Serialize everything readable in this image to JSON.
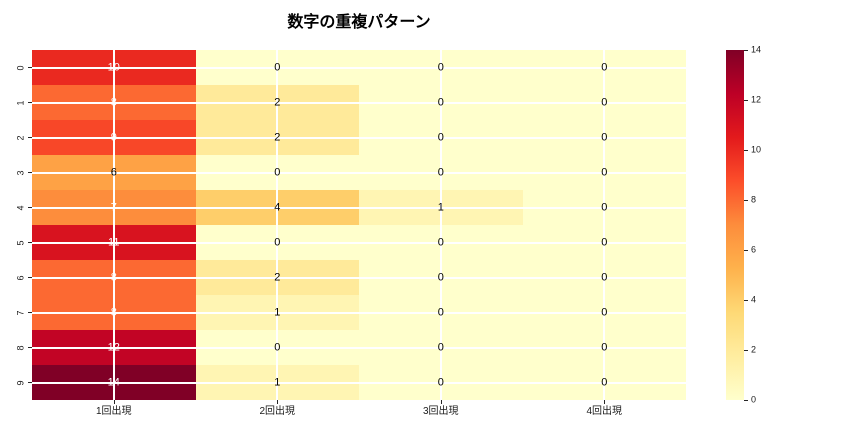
{
  "title": "数字の重複パターン",
  "chart_data": {
    "type": "heatmap",
    "rows": [
      "0",
      "1",
      "2",
      "3",
      "4",
      "5",
      "6",
      "7",
      "8",
      "9"
    ],
    "columns": [
      "1回出現",
      "2回出現",
      "3回出現",
      "4回出現"
    ],
    "values": [
      [
        10,
        0,
        0,
        0
      ],
      [
        8,
        2,
        0,
        0
      ],
      [
        9,
        2,
        0,
        0
      ],
      [
        6,
        0,
        0,
        0
      ],
      [
        7,
        4,
        1,
        0
      ],
      [
        11,
        0,
        0,
        0
      ],
      [
        8,
        2,
        0,
        0
      ],
      [
        8,
        1,
        0,
        0
      ],
      [
        12,
        0,
        0,
        0
      ],
      [
        14,
        1,
        0,
        0
      ]
    ],
    "vmin": 0,
    "vmax": 14,
    "colormap": "YlOrRd",
    "colormap_stops": [
      "#ffffcc",
      "#ffeda0",
      "#fed976",
      "#feb24c",
      "#fd8d3c",
      "#fc4e2a",
      "#e31a1c",
      "#bd0026",
      "#800026"
    ],
    "colorbar_ticks": [
      0,
      2,
      4,
      6,
      8,
      10,
      12,
      14
    ],
    "annotation_colors": {
      "light_text": "#ffffff",
      "dark_text": "#000000"
    },
    "gridline_color": "#ffffff"
  }
}
